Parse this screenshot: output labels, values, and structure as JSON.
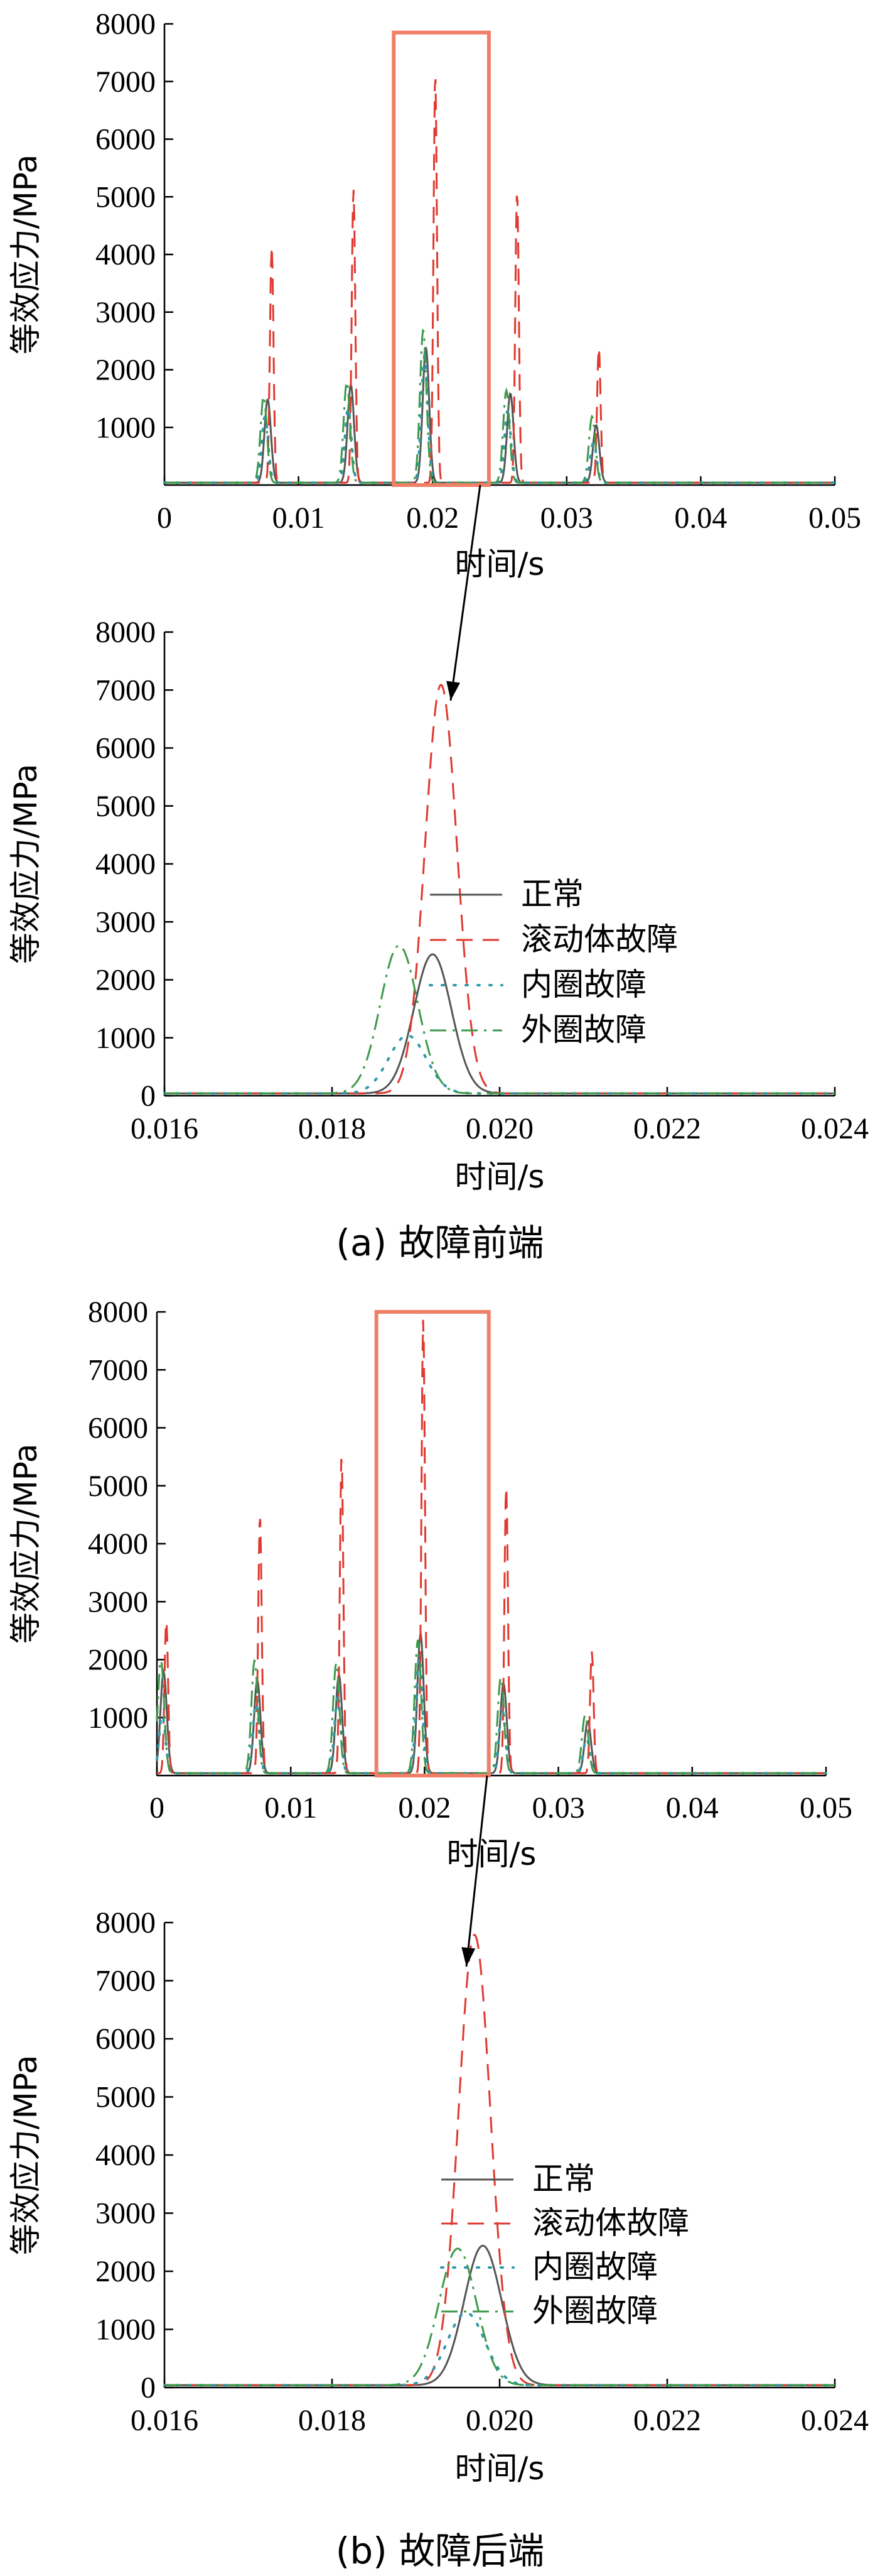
{
  "captions": [
    "(a)  故障前端",
    "(b)  故障后端"
  ],
  "legend_labels": [
    "正常",
    "滚动体故障",
    "内圈故障",
    "外圈故障"
  ],
  "colors": {
    "normal": "#555555",
    "roller": "#e0382f",
    "inner": "#2f9aa8",
    "outer": "#3c9a4a",
    "box": "#f07f68"
  },
  "chart_data": [
    {
      "type": "line",
      "ylabel": "等效应力/MPa",
      "xlabel": "时间/s",
      "xlim": [
        0,
        0.05
      ],
      "ylim": [
        0,
        8000
      ],
      "x_ticks": [
        "0",
        "0.01",
        "0.02",
        "0.03",
        "0.04",
        "0.05"
      ],
      "y_ticks": [
        "1000",
        "2000",
        "3000",
        "4000",
        "5000",
        "6000",
        "7000",
        "8000"
      ],
      "zoom_box": {
        "x": [
          0.0171,
          0.0242
        ],
        "y": [
          0,
          7850
        ]
      },
      "series": [
        {
          "key": "normal",
          "peaks": [
            [
              0.0077,
              1450
            ],
            [
              0.0139,
              1700
            ],
            [
              0.0195,
              2350
            ],
            [
              0.0258,
              1550
            ],
            [
              0.0322,
              1000
            ]
          ]
        },
        {
          "key": "roller",
          "peaks": [
            [
              0.008,
              4100
            ],
            [
              0.0141,
              5100
            ],
            [
              0.0202,
              7100
            ],
            [
              0.0263,
              5050
            ],
            [
              0.0324,
              2350
            ]
          ]
        },
        {
          "key": "inner",
          "peaks": [
            [
              0.0075,
              1150
            ],
            [
              0.0137,
              1300
            ],
            [
              0.0194,
              2200
            ],
            [
              0.0256,
              1250
            ],
            [
              0.032,
              700
            ]
          ]
        },
        {
          "key": "outer",
          "peaks": [
            [
              0.0074,
              1500
            ],
            [
              0.0136,
              1750
            ],
            [
              0.0193,
              2650
            ],
            [
              0.0255,
              1600
            ],
            [
              0.0319,
              1150
            ]
          ]
        }
      ]
    },
    {
      "type": "line",
      "ylabel": "等效应力/MPa",
      "xlabel": "时间/s",
      "xlim": [
        0.016,
        0.024
      ],
      "ylim": [
        0,
        8000
      ],
      "x_ticks": [
        "0.016",
        "0.018",
        "0.020",
        "0.022",
        "0.024"
      ],
      "y_ticks": [
        "0",
        "1000",
        "2000",
        "3000",
        "4000",
        "5000",
        "6000",
        "7000",
        "8000"
      ],
      "legend_position": "right",
      "series": [
        {
          "key": "normal",
          "peaks": [
            [
              0.0192,
              2400
            ]
          ]
        },
        {
          "key": "roller",
          "peaks": [
            [
              0.0193,
              7050
            ]
          ]
        },
        {
          "key": "inner",
          "peaks": [
            [
              0.0189,
              1000
            ]
          ]
        },
        {
          "key": "outer",
          "peaks": [
            [
              0.0188,
              2550
            ]
          ]
        }
      ]
    },
    {
      "type": "line",
      "ylabel": "等效应力/MPa",
      "xlabel": "时间/s",
      "xlim": [
        0,
        0.05
      ],
      "ylim": [
        0,
        8000
      ],
      "x_ticks": [
        "0",
        "0.01",
        "0.02",
        "0.03",
        "0.04",
        "0.05"
      ],
      "y_ticks": [
        "1000",
        "2000",
        "3000",
        "4000",
        "5000",
        "6000",
        "7000",
        "8000"
      ],
      "zoom_box": {
        "x": [
          0.0164,
          0.0248
        ],
        "y": [
          0,
          8000
        ]
      },
      "series": [
        {
          "key": "normal",
          "peaks": [
            [
              0.0005,
              1750
            ],
            [
              0.0075,
              1600
            ],
            [
              0.0136,
              1700
            ],
            [
              0.0197,
              2400
            ],
            [
              0.0259,
              1550
            ],
            [
              0.0322,
              900
            ]
          ]
        },
        {
          "key": "roller",
          "peaks": [
            [
              0.0007,
              2650
            ],
            [
              0.0077,
              4450
            ],
            [
              0.0138,
              5500
            ],
            [
              0.0199,
              7850
            ],
            [
              0.0261,
              4950
            ],
            [
              0.0325,
              2100
            ]
          ]
        },
        {
          "key": "inner",
          "peaks": [
            [
              0.0004,
              1000
            ],
            [
              0.0074,
              1200
            ],
            [
              0.0135,
              1300
            ],
            [
              0.0196,
              2000
            ],
            [
              0.0258,
              1100
            ],
            [
              0.0321,
              600
            ]
          ]
        },
        {
          "key": "outer",
          "peaks": [
            [
              0.0003,
              1950
            ],
            [
              0.0073,
              1950
            ],
            [
              0.0134,
              1900
            ],
            [
              0.0195,
              2300
            ],
            [
              0.0257,
              1650
            ],
            [
              0.032,
              1000
            ]
          ]
        }
      ]
    },
    {
      "type": "line",
      "ylabel": "等效应力/MPa",
      "xlabel": "时间/s",
      "xlim": [
        0.016,
        0.024
      ],
      "ylim": [
        0,
        8000
      ],
      "x_ticks": [
        "0.016",
        "0.018",
        "0.020",
        "0.022",
        "0.024"
      ],
      "y_ticks": [
        "0",
        "1000",
        "2000",
        "3000",
        "4000",
        "5000",
        "6000",
        "7000",
        "8000"
      ],
      "legend_position": "right",
      "series": [
        {
          "key": "normal",
          "peaks": [
            [
              0.0198,
              2400
            ]
          ]
        },
        {
          "key": "roller",
          "peaks": [
            [
              0.0197,
              7750
            ]
          ]
        },
        {
          "key": "inner",
          "peaks": [
            [
              0.0196,
              1250
            ]
          ]
        },
        {
          "key": "outer",
          "peaks": [
            [
              0.0195,
              2350
            ]
          ]
        }
      ]
    }
  ]
}
